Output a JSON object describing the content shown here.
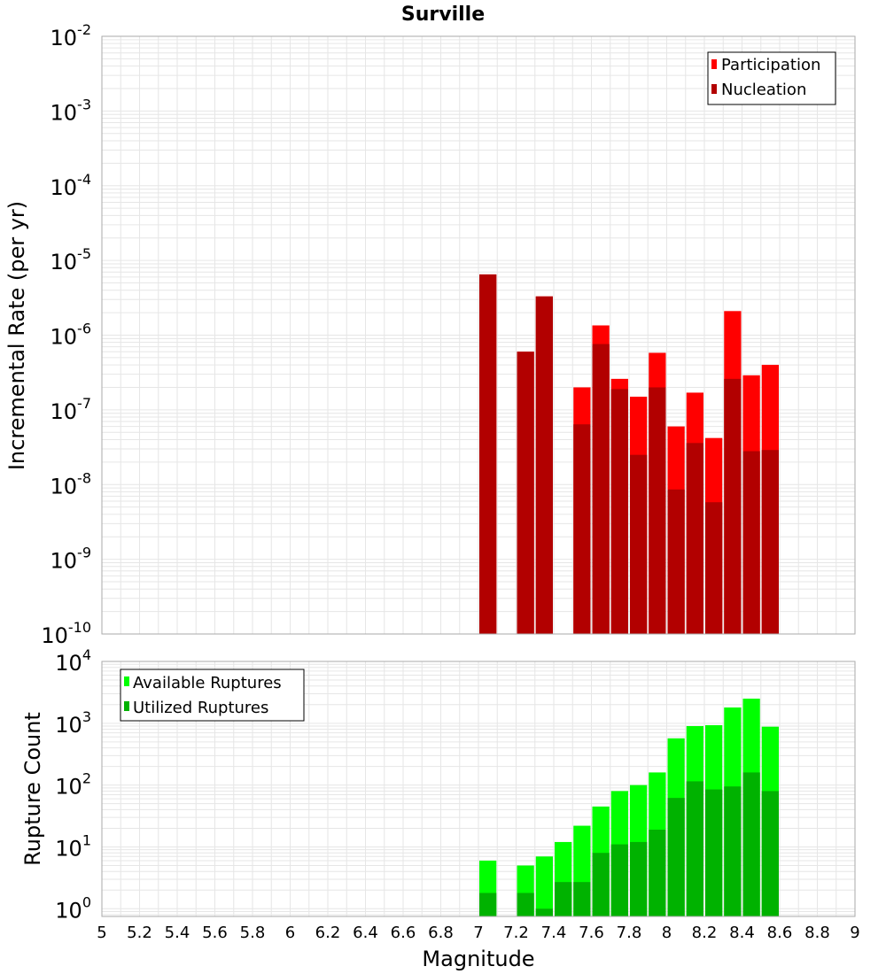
{
  "colors": {
    "participation": "#ff0000",
    "nucleation": "#b20000",
    "available": "#00ff00",
    "utilized": "#00b200",
    "grid": "#e6e6e6",
    "frame": "#aaaaaa"
  },
  "chart_data": [
    {
      "type": "bar",
      "title": "Surville",
      "xlabel": "",
      "ylabel": "Incremental Rate (per yr)",
      "xlim": [
        5,
        9
      ],
      "ylim": [
        1e-10,
        0.01
      ],
      "yscale": "log",
      "grid": true,
      "bar_width": 0.1,
      "y_tick_bases": [
        "10",
        "10",
        "10",
        "10",
        "10",
        "10",
        "10",
        "10",
        "10"
      ],
      "y_tick_exponents": [
        "-10",
        "-9",
        "-8",
        "-7",
        "-6",
        "-5",
        "-4",
        "-3",
        "-2"
      ],
      "legend_position": "top-right",
      "legend": [
        "Participation",
        "Nucleation"
      ],
      "x": [
        7.05,
        7.25,
        7.35,
        7.55,
        7.65,
        7.75,
        7.85,
        7.95,
        8.05,
        8.15,
        8.25,
        8.35,
        8.45,
        8.55
      ],
      "series": [
        {
          "name": "Participation",
          "values": [
            6.5e-06,
            6e-07,
            3.3e-06,
            2e-07,
            1.35e-06,
            2.6e-07,
            1.5e-07,
            5.8e-07,
            6e-08,
            1.7e-07,
            4.2e-08,
            2.1e-06,
            2.9e-07,
            4e-07
          ]
        },
        {
          "name": "Nucleation",
          "values": [
            6.5e-06,
            6e-07,
            3.3e-06,
            6.4e-08,
            7.6e-07,
            1.9e-07,
            2.5e-08,
            2e-07,
            8.6e-09,
            3.6e-08,
            5.8e-09,
            2.6e-07,
            2.8e-08,
            2.9e-08
          ]
        }
      ]
    },
    {
      "type": "bar",
      "title": "",
      "xlabel": "Magnitude",
      "ylabel": "Rupture Count",
      "xlim": [
        5,
        9
      ],
      "ylim": [
        0.75,
        10000
      ],
      "yscale": "log",
      "grid": true,
      "bar_width": 0.1,
      "y_tick_bases": [
        "10",
        "10",
        "10",
        "10",
        "10"
      ],
      "y_tick_exponents": [
        "0",
        "1",
        "2",
        "3",
        "4"
      ],
      "x_tick_labels": [
        "5",
        "5.2",
        "5.4",
        "5.6",
        "5.8",
        "6",
        "6.2",
        "6.4",
        "6.6",
        "6.8",
        "7",
        "7.2",
        "7.4",
        "7.6",
        "7.8",
        "8",
        "8.2",
        "8.4",
        "8.6",
        "8.8",
        "9"
      ],
      "legend_position": "top-left",
      "legend": [
        "Available Ruptures",
        "Utilized Ruptures"
      ],
      "x": [
        7.05,
        7.25,
        7.35,
        7.45,
        7.55,
        7.65,
        7.75,
        7.85,
        7.95,
        8.05,
        8.15,
        8.25,
        8.35,
        8.45,
        8.55
      ],
      "series": [
        {
          "name": "Available Ruptures",
          "values": [
            6,
            5,
            7,
            12,
            22,
            45,
            80,
            100,
            160,
            570,
            900,
            930,
            1800,
            2500,
            880
          ]
        },
        {
          "name": "Utilized Ruptures",
          "values": [
            1.8,
            1.8,
            1,
            2.7,
            2.7,
            8,
            11,
            12,
            19,
            62,
            115,
            85,
            95,
            160,
            80
          ]
        }
      ]
    }
  ]
}
